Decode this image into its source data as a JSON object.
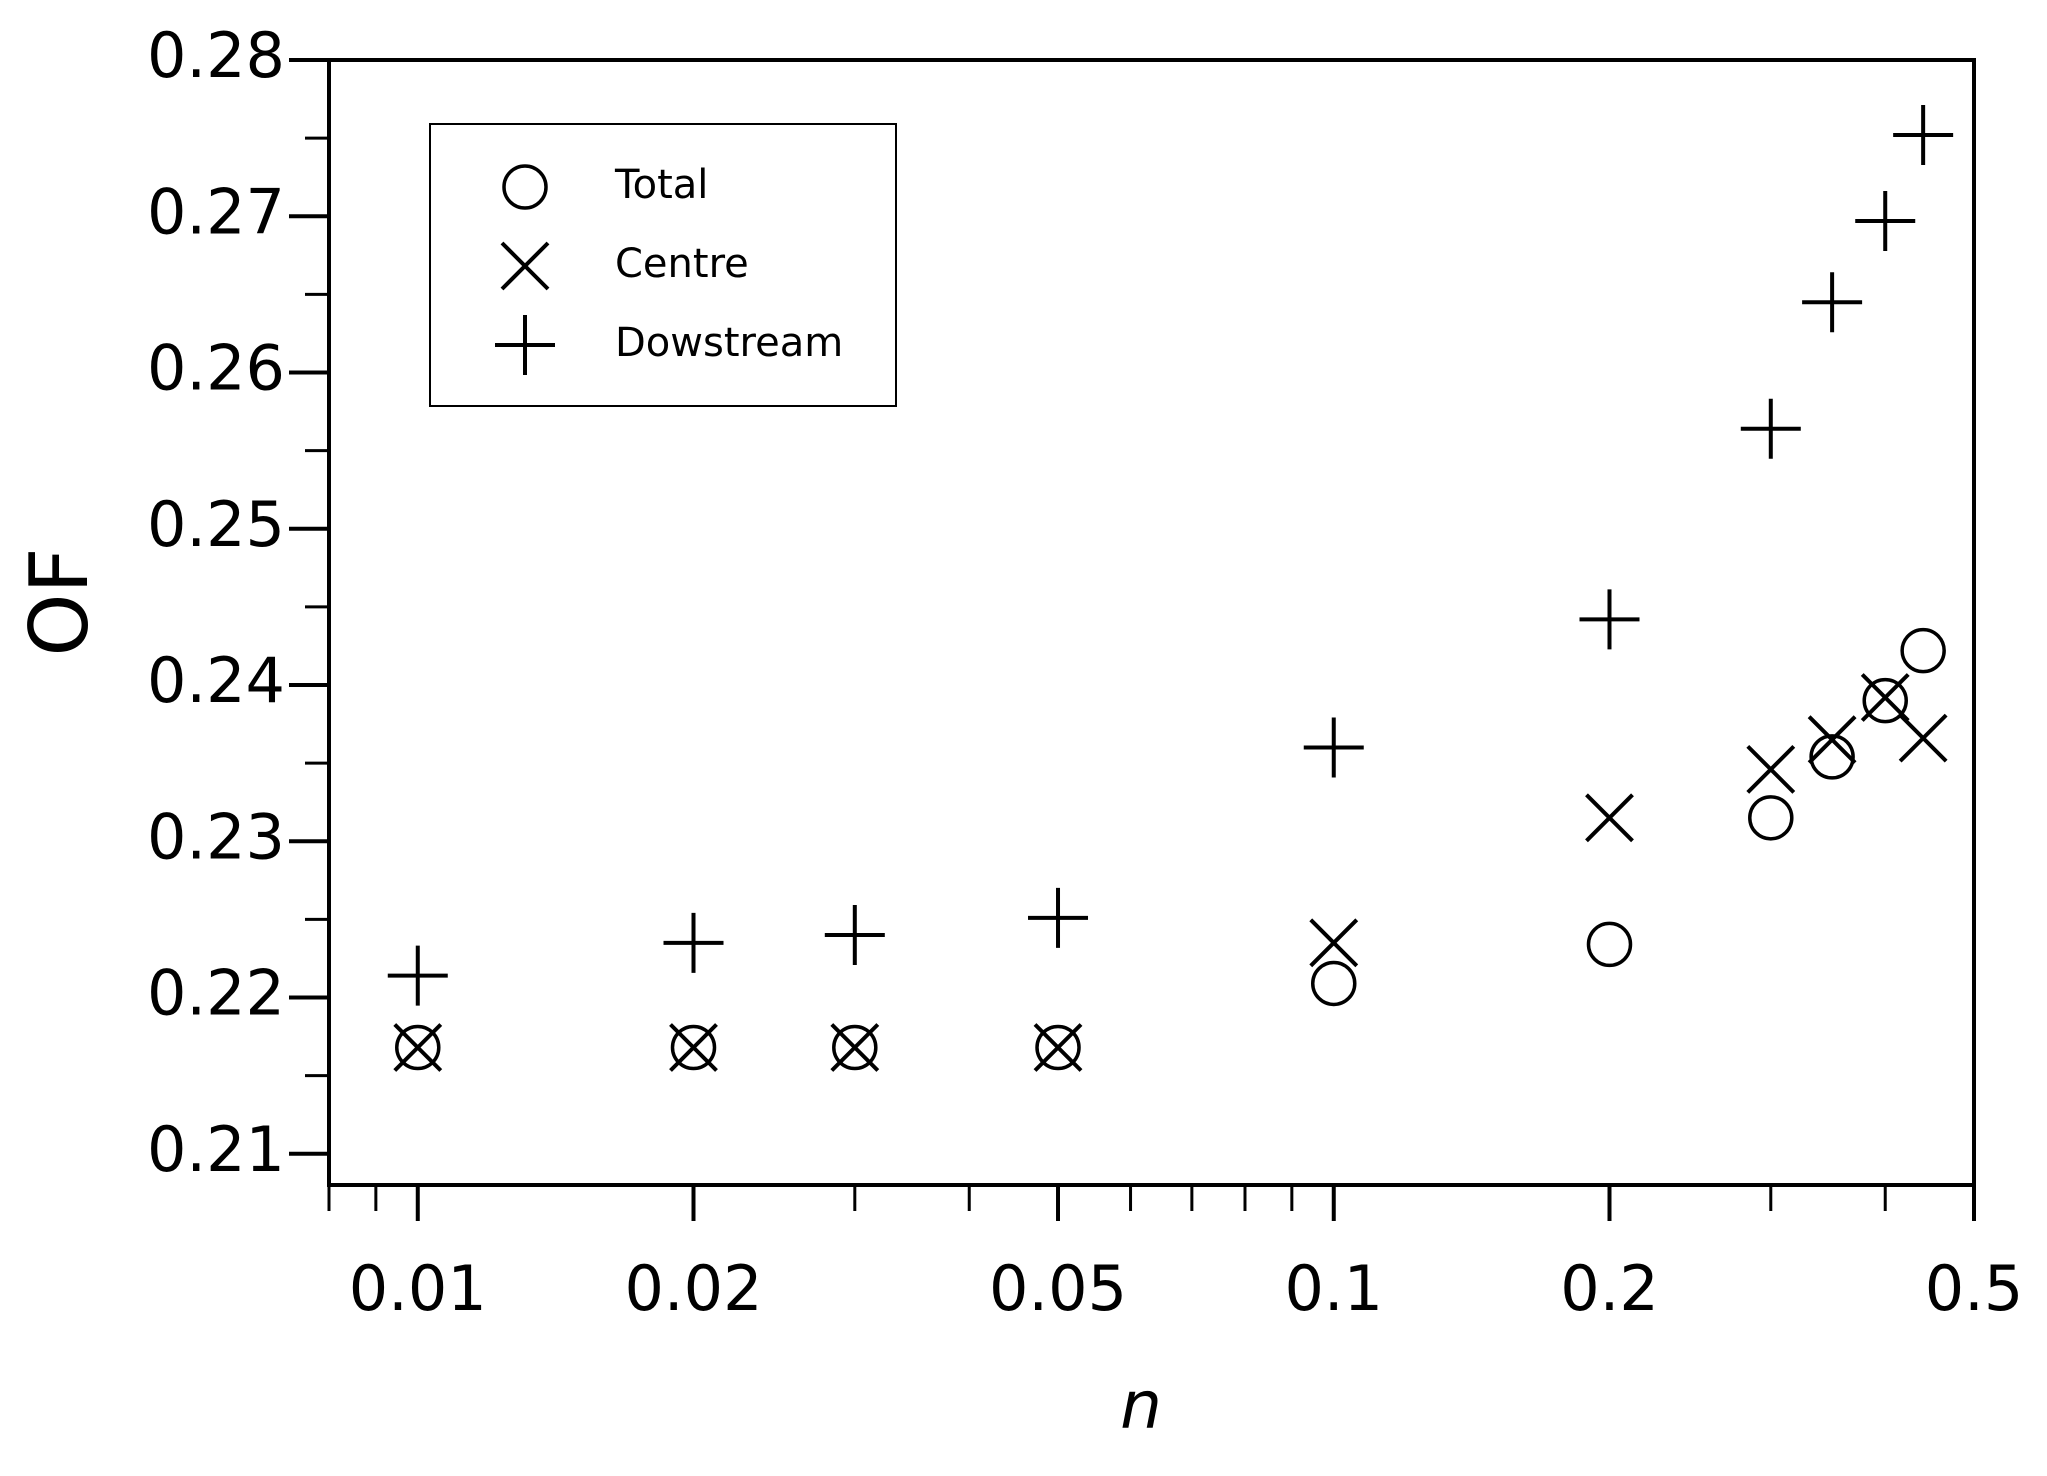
{
  "chart_data": {
    "type": "scatter",
    "ylabel": "OF",
    "xlabel": "n",
    "xscale": "log",
    "xlim": [
      0.008,
      0.5
    ],
    "xticks": [
      0.01,
      0.02,
      0.05,
      0.1,
      0.2,
      0.5
    ],
    "xminorticks": [
      0.008,
      0.009,
      0.03,
      0.04,
      0.06,
      0.07,
      0.08,
      0.09,
      0.3,
      0.4
    ],
    "ylim": [
      0.208,
      0.28
    ],
    "yticks": [
      0.21,
      0.22,
      0.23,
      0.24,
      0.25,
      0.26,
      0.27,
      0.28
    ],
    "yminorticks": [
      0.215,
      0.225,
      0.235,
      0.245,
      0.255,
      0.265,
      0.275
    ],
    "legend": "upper-left",
    "series": [
      {
        "name": "Total",
        "marker": "circle",
        "color": "#000000",
        "x": [
          0.01,
          0.02,
          0.03,
          0.05,
          0.1,
          0.2,
          0.3,
          0.35,
          0.4,
          0.44
        ],
        "values": [
          0.2168,
          0.2168,
          0.2168,
          0.2168,
          0.2209,
          0.2234,
          0.2315,
          0.2354,
          0.239,
          0.2422
        ]
      },
      {
        "name": "Centre",
        "marker": "cross",
        "color": "#000000",
        "x": [
          0.01,
          0.02,
          0.03,
          0.05,
          0.1,
          0.2,
          0.3,
          0.35,
          0.4,
          0.44
        ],
        "values": [
          0.2168,
          0.2168,
          0.2168,
          0.2168,
          0.2235,
          0.2315,
          0.2346,
          0.2365,
          0.2392,
          0.2366
        ]
      },
      {
        "name": "Dowstream",
        "marker": "plus",
        "color": "#000000",
        "x": [
          0.01,
          0.02,
          0.03,
          0.05,
          0.1,
          0.2,
          0.3,
          0.35,
          0.4,
          0.44
        ],
        "values": [
          0.2214,
          0.2235,
          0.224,
          0.2251,
          0.236,
          0.2442,
          0.2564,
          0.2645,
          0.2697,
          0.2752
        ]
      }
    ]
  }
}
